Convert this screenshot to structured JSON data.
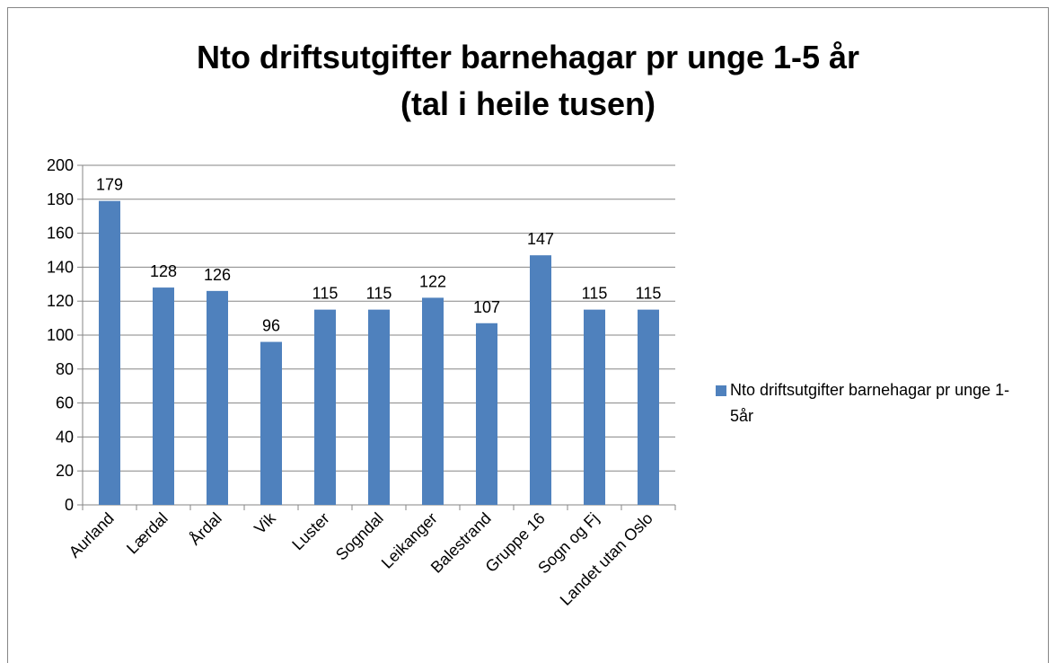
{
  "chart_data": {
    "type": "bar",
    "title": [
      "Nto driftsutgifter barnehagar pr unge 1-5 år",
      "(tal i heile tusen)"
    ],
    "categories": [
      "Aurland",
      "Lærdal",
      "Årdal",
      "Vik",
      "Luster",
      "Sogndal",
      "Leikanger",
      "Balestrand",
      "Gruppe 16",
      "Sogn og Fj",
      "Landet utan Oslo"
    ],
    "series": [
      {
        "name": "Nto driftsutgifter barnehagar pr unge 1-5år",
        "color": "#4f81bd",
        "values": [
          179,
          128,
          126,
          96,
          115,
          115,
          122,
          107,
          147,
          115,
          115
        ]
      }
    ],
    "ylim": [
      0,
      200
    ],
    "yticks": [
      0,
      20,
      40,
      60,
      80,
      100,
      120,
      140,
      160,
      180,
      200
    ],
    "grid": true,
    "legend": "right"
  }
}
